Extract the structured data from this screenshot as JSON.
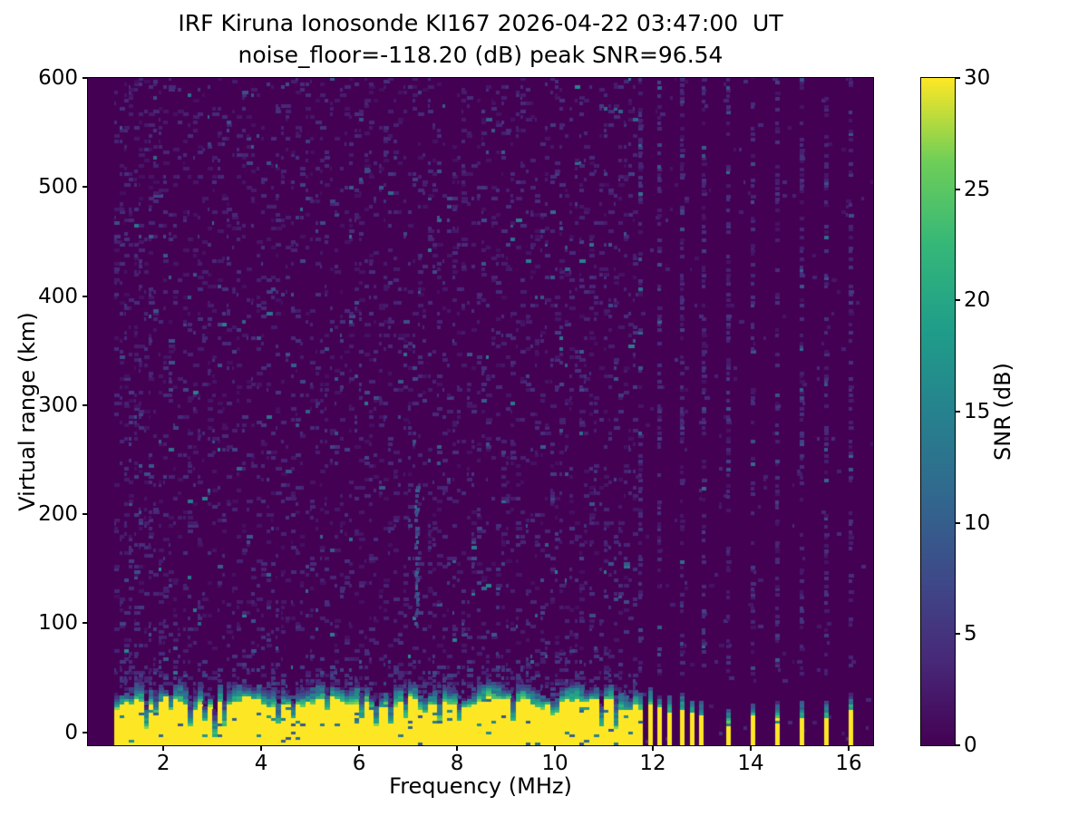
{
  "figure": {
    "title_line1": "IRF Kiruna Ionosonde KI167 2026-04-22 03:47:00  UT",
    "title_line2": "noise_floor=-118.20 (dB) peak SNR=96.54",
    "background": "#ffffff"
  },
  "chart_data": {
    "type": "heatmap",
    "title": "IRF Kiruna Ionosonde KI167 2026-04-22 03:47:00  UT\nnoise_floor=-118.20 (dB) peak SNR=96.54",
    "xlabel": "Frequency (MHz)",
    "ylabel": "Virtual range (km)",
    "xlim": [
      0.46,
      16.5
    ],
    "ylim": [
      -12,
      600
    ],
    "x_ticks": [
      2,
      4,
      6,
      8,
      10,
      12,
      14,
      16
    ],
    "y_ticks": [
      0,
      100,
      200,
      300,
      400,
      500,
      600
    ],
    "noise_floor_db": -118.2,
    "peak_snr_db": 96.54,
    "station": "IRF Kiruna Ionosonde KI167",
    "timestamp_ut": "2026-04-22 03:47:00 UT",
    "colorbar": {
      "label": "SNR (dB)",
      "min": 0,
      "max": 30,
      "ticks": [
        0,
        5,
        10,
        15,
        20,
        25,
        30
      ],
      "colormap": "viridis",
      "stops": [
        "#440154",
        "#482878",
        "#3e4a89",
        "#31688e",
        "#26828e",
        "#1f9e89",
        "#35b779",
        "#6ece58",
        "#fde725"
      ]
    },
    "cell_size": {
      "df_mhz": 0.1,
      "dkm": 2.5
    },
    "ground_echo_band": {
      "f_start": 1.0,
      "f_end": 11.65,
      "yellow_top_km_mean": 26,
      "green_top_km_mean": 42,
      "notches": [
        [
          1.62,
          0.07,
          0.95
        ],
        [
          1.82,
          0.05,
          0.5
        ],
        [
          2.07,
          0.05,
          0.6
        ],
        [
          2.5,
          0.05,
          0.55
        ],
        [
          2.8,
          0.05,
          0.45
        ],
        [
          3.0,
          0.07,
          0.85
        ],
        [
          3.2,
          0.05,
          0.6
        ],
        [
          3.45,
          0.05,
          0.4
        ],
        [
          3.75,
          0.05,
          0.65
        ],
        [
          4.27,
          0.07,
          0.9
        ],
        [
          4.62,
          0.05,
          0.6
        ],
        [
          4.95,
          0.05,
          0.45
        ],
        [
          5.27,
          0.05,
          0.65
        ],
        [
          5.65,
          0.05,
          0.6
        ],
        [
          6.0,
          0.05,
          0.4
        ],
        [
          6.27,
          0.07,
          0.95
        ],
        [
          6.6,
          0.05,
          0.5
        ],
        [
          6.9,
          0.05,
          0.45
        ],
        [
          7.25,
          0.07,
          0.9
        ],
        [
          7.6,
          0.05,
          0.5
        ],
        [
          8.0,
          0.05,
          0.45
        ],
        [
          8.35,
          0.05,
          0.55
        ],
        [
          8.75,
          0.05,
          0.5
        ],
        [
          9.1,
          0.05,
          0.45
        ],
        [
          9.45,
          0.05,
          0.55
        ],
        [
          9.95,
          0.07,
          0.8
        ],
        [
          10.45,
          0.05,
          0.6
        ],
        [
          10.9,
          0.05,
          0.6
        ],
        [
          11.2,
          0.05,
          0.65
        ],
        [
          11.45,
          0.06,
          0.7
        ]
      ]
    },
    "discrete_stripes": [
      {
        "f": 11.7,
        "yellow_top_km": 20
      },
      {
        "f": 11.9,
        "yellow_top_km": 24
      },
      {
        "f": 12.1,
        "yellow_top_km": 22
      },
      {
        "f": 12.3,
        "yellow_top_km": 18
      },
      {
        "f": 12.55,
        "yellow_top_km": 20
      },
      {
        "f": 12.75,
        "yellow_top_km": 16
      },
      {
        "f": 12.95,
        "yellow_top_km": 14
      },
      {
        "f": 13.5,
        "yellow_top_km": 8
      },
      {
        "f": 14.0,
        "yellow_top_km": 14
      },
      {
        "f": 14.5,
        "yellow_top_km": 12
      },
      {
        "f": 15.0,
        "yellow_top_km": 12
      },
      {
        "f": 15.5,
        "yellow_top_km": 13
      },
      {
        "f": 16.0,
        "yellow_top_km": 20
      }
    ],
    "stripe_speckle_columns": [
      11.7,
      12.1,
      12.55,
      13.0,
      13.5,
      14.0,
      14.5,
      15.0,
      15.5,
      16.0
    ],
    "echo_streak": {
      "f": 7.15,
      "km_range": [
        95,
        225
      ]
    }
  }
}
